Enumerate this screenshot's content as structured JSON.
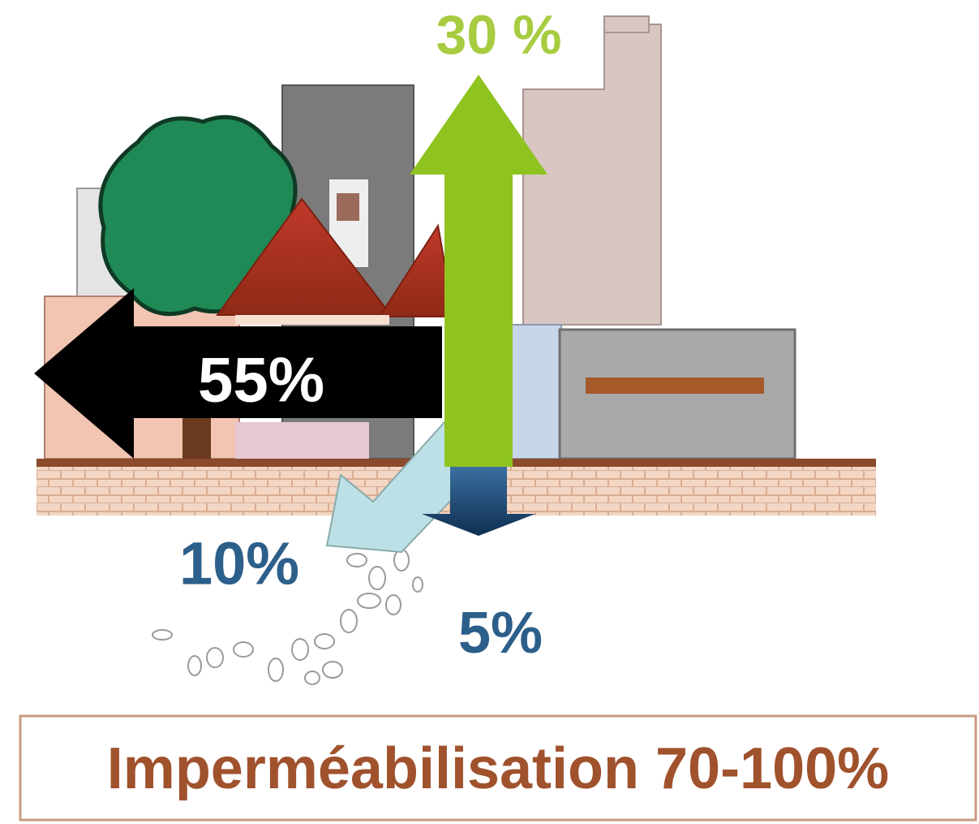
{
  "labels": {
    "evaporation": "30 %",
    "runoff": "55%",
    "shallow_infiltration": "10%",
    "deep_infiltration": "5%"
  },
  "caption": "Imperméabilisation 70-100%"
}
